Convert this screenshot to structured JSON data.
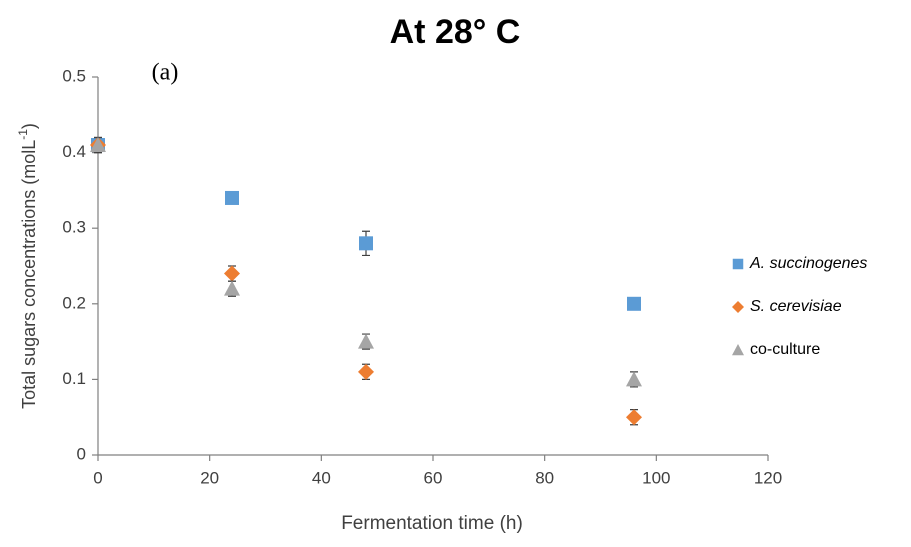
{
  "chart_data": {
    "type": "scatter",
    "title": "At 28° C",
    "annotation": "(a)",
    "x_label": "Fermentation time (h)",
    "y_label": "Total sugars concentrations  (molL",
    "y_label_sup": "-1",
    "y_label_end": ")",
    "xlim": [
      0,
      120
    ],
    "xticks": [
      0,
      20,
      40,
      60,
      80,
      100,
      120
    ],
    "ylim": [
      0,
      0.5
    ],
    "yticks": [
      0,
      0.1,
      0.2,
      0.3,
      0.4,
      0.5
    ],
    "grid": false,
    "legend": "right",
    "series": [
      {
        "name": "A. succinogenes",
        "italic": true,
        "marker": "square",
        "color": "#5b9bd5",
        "x": [
          0,
          24,
          48,
          96
        ],
        "values": [
          0.41,
          0.34,
          0.28,
          0.2
        ],
        "errors": [
          0.005,
          0.004,
          0.016,
          0.004
        ]
      },
      {
        "name": "S. cerevisiae",
        "italic": true,
        "marker": "diamond",
        "color": "#ed7d31",
        "x": [
          0,
          24,
          48,
          96
        ],
        "values": [
          0.41,
          0.24,
          0.11,
          0.05
        ],
        "errors": [
          0.01,
          0.01,
          0.01,
          0.01
        ]
      },
      {
        "name": "co-culture",
        "italic": false,
        "marker": "triangle",
        "color": "#a5a5a5",
        "x": [
          0,
          24,
          48,
          96
        ],
        "values": [
          0.41,
          0.22,
          0.15,
          0.1
        ],
        "errors": [
          0.01,
          0.01,
          0.01,
          0.01
        ]
      }
    ]
  }
}
